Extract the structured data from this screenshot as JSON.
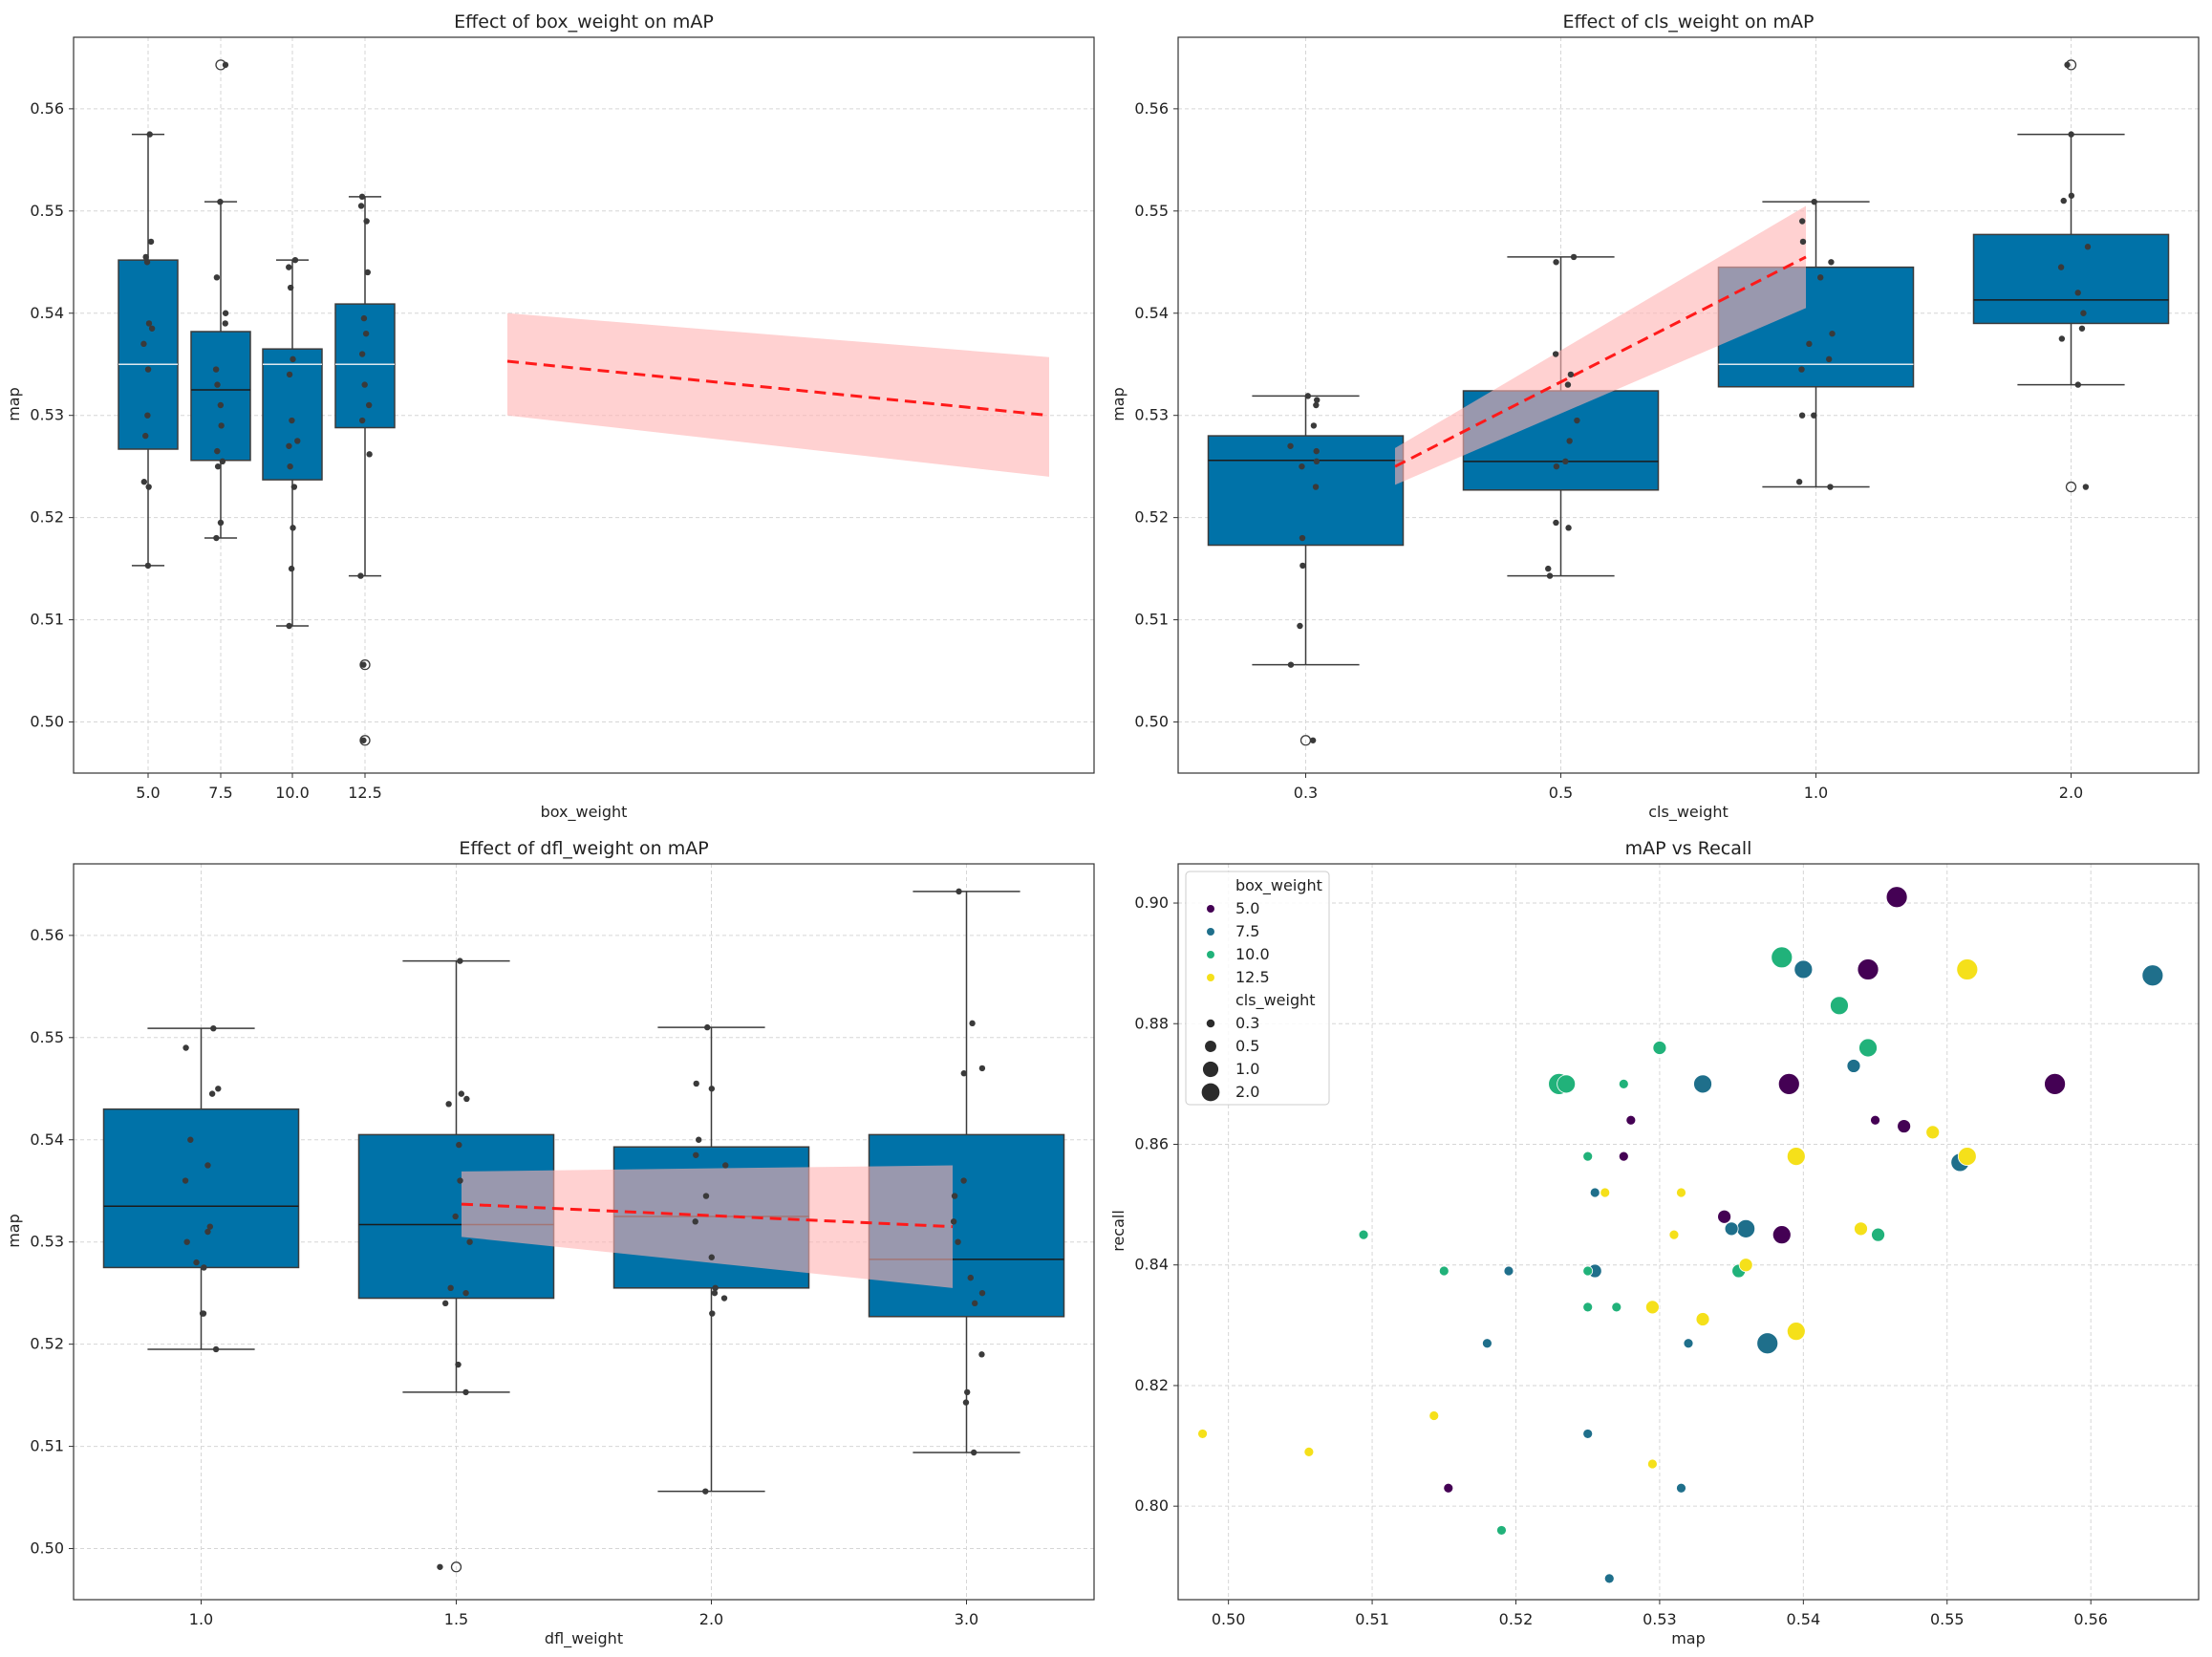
{
  "colors": {
    "box_fill": "#0072a8",
    "box_edge": "#3b3b3b",
    "median_dark": "#1b1b1b",
    "median_light": "#dfe8ee",
    "strip_point": "#3a3a3a",
    "reg_line": "#ff1a1a",
    "reg_band": "#ffb3b3",
    "grid": "#d6d6d6",
    "hue_5_0": "#440154",
    "hue_7_5": "#1f6f8b",
    "hue_10_0": "#21b27a",
    "hue_12_5": "#f5e01a"
  },
  "chart_data": [
    {
      "id": "box",
      "type": "box",
      "title": "Effect of box_weight on mAP",
      "xlabel": "box_weight",
      "ylabel": "map",
      "ylim": [
        0.495,
        0.567
      ],
      "yticks": [
        "0.50",
        "0.51",
        "0.52",
        "0.53",
        "0.54",
        "0.55",
        "0.56"
      ],
      "categories": [
        "5.0",
        "7.5",
        "10.0",
        "12.5"
      ],
      "boxes": [
        {
          "q1": 0.5267,
          "median": 0.535,
          "q3": 0.5452,
          "whislo": 0.5153,
          "whishi": 0.5575,
          "median_style": "light",
          "fliers": []
        },
        {
          "q1": 0.5256,
          "median": 0.5325,
          "q3": 0.5382,
          "whislo": 0.518,
          "whishi": 0.5509,
          "median_style": "dark",
          "fliers": [
            0.5643
          ]
        },
        {
          "q1": 0.5237,
          "median": 0.535,
          "q3": 0.5365,
          "whislo": 0.5094,
          "whishi": 0.5452,
          "median_style": "light",
          "fliers": []
        },
        {
          "q1": 0.5288,
          "median": 0.535,
          "q3": 0.5409,
          "whislo": 0.5143,
          "whishi": 0.5514,
          "median_style": "light",
          "fliers": [
            0.5056,
            0.4982
          ]
        }
      ],
      "strip": [
        [
          0.5153,
          0.523,
          0.5235,
          0.528,
          0.53,
          0.5345,
          0.537,
          0.5385,
          0.539,
          0.545,
          0.5455,
          0.547,
          0.5575
        ],
        [
          0.518,
          0.5195,
          0.525,
          0.5255,
          0.5265,
          0.529,
          0.531,
          0.533,
          0.5345,
          0.539,
          0.54,
          0.5435,
          0.5509,
          0.5643
        ],
        [
          0.5094,
          0.515,
          0.519,
          0.523,
          0.525,
          0.527,
          0.5275,
          0.5295,
          0.534,
          0.5355,
          0.5425,
          0.5445,
          0.5452
        ],
        [
          0.4982,
          0.5056,
          0.5143,
          0.5262,
          0.5295,
          0.531,
          0.533,
          0.536,
          0.538,
          0.5395,
          0.544,
          0.549,
          0.5505,
          0.5514
        ]
      ],
      "regression": {
        "x_start": 5.0,
        "x_end": 12.5,
        "y_start": 0.5353,
        "y_end": 0.53,
        "band_start": [
          0.53,
          0.54
        ],
        "band_end": [
          0.524,
          0.5357
        ],
        "x_lim": [
          -0.5,
          13.7
        ]
      }
    },
    {
      "id": "cls",
      "type": "box",
      "title": "Effect of cls_weight on mAP",
      "xlabel": "cls_weight",
      "ylabel": "map",
      "ylim": [
        0.495,
        0.567
      ],
      "yticks": [
        "0.50",
        "0.51",
        "0.52",
        "0.53",
        "0.54",
        "0.55",
        "0.56"
      ],
      "categories": [
        "0.3",
        "0.5",
        "1.0",
        "2.0"
      ],
      "boxes": [
        {
          "q1": 0.5173,
          "median": 0.5256,
          "q3": 0.528,
          "whislo": 0.5056,
          "whishi": 0.5319,
          "median_style": "dark",
          "fliers": [
            0.4982
          ]
        },
        {
          "q1": 0.5227,
          "median": 0.5255,
          "q3": 0.5324,
          "whislo": 0.5143,
          "whishi": 0.5455,
          "median_style": "dark",
          "fliers": []
        },
        {
          "q1": 0.5328,
          "median": 0.535,
          "q3": 0.5445,
          "whislo": 0.523,
          "whishi": 0.5509,
          "median_style": "light",
          "fliers": []
        },
        {
          "q1": 0.539,
          "median": 0.5413,
          "q3": 0.5477,
          "whislo": 0.533,
          "whishi": 0.5575,
          "median_style": "dark",
          "fliers": [
            0.5643,
            0.523
          ]
        }
      ],
      "strip": [
        [
          0.4982,
          0.5056,
          0.5094,
          0.5153,
          0.518,
          0.523,
          0.525,
          0.5255,
          0.5265,
          0.527,
          0.529,
          0.531,
          0.5315,
          0.5319
        ],
        [
          0.5143,
          0.515,
          0.519,
          0.5195,
          0.525,
          0.5255,
          0.5275,
          0.5295,
          0.533,
          0.534,
          0.536,
          0.545,
          0.5455
        ],
        [
          0.523,
          0.5235,
          0.53,
          0.53,
          0.5345,
          0.5355,
          0.537,
          0.538,
          0.5435,
          0.545,
          0.547,
          0.549,
          0.5509
        ],
        [
          0.523,
          0.533,
          0.5375,
          0.5385,
          0.54,
          0.542,
          0.5445,
          0.5465,
          0.551,
          0.5515,
          0.5575,
          0.5643
        ]
      ],
      "regression": {
        "x_start": 0.3,
        "x_end": 2.0,
        "y_start": 0.525,
        "y_end": 0.5455,
        "band_start": [
          0.5232,
          0.5268
        ],
        "band_end": [
          0.5405,
          0.5505
        ],
        "x_lim": [
          -0.5,
          3.5
        ]
      }
    },
    {
      "id": "dfl",
      "type": "box",
      "title": "Effect of dfl_weight on mAP",
      "xlabel": "dfl_weight",
      "ylabel": "map",
      "ylim": [
        0.495,
        0.567
      ],
      "yticks": [
        "0.50",
        "0.51",
        "0.52",
        "0.53",
        "0.54",
        "0.55",
        "0.56"
      ],
      "categories": [
        "1.0",
        "1.5",
        "2.0",
        "3.0"
      ],
      "boxes": [
        {
          "q1": 0.5275,
          "median": 0.5335,
          "q3": 0.543,
          "whislo": 0.5195,
          "whishi": 0.5509,
          "median_style": "dark",
          "fliers": []
        },
        {
          "q1": 0.5245,
          "median": 0.5317,
          "q3": 0.5405,
          "whislo": 0.5153,
          "whishi": 0.5575,
          "median_style": "dark",
          "fliers": [
            0.4982
          ]
        },
        {
          "q1": 0.5255,
          "median": 0.5325,
          "q3": 0.5393,
          "whislo": 0.5056,
          "whishi": 0.551,
          "median_style": "dark",
          "fliers": []
        },
        {
          "q1": 0.5227,
          "median": 0.5283,
          "q3": 0.5405,
          "whislo": 0.5094,
          "whishi": 0.5643,
          "median_style": "dark",
          "fliers": []
        }
      ],
      "strip": [
        [
          0.5195,
          0.523,
          0.523,
          0.5275,
          0.528,
          0.53,
          0.531,
          0.5315,
          0.536,
          0.5375,
          0.54,
          0.5445,
          0.545,
          0.549,
          0.5509
        ],
        [
          0.4982,
          0.5153,
          0.518,
          0.524,
          0.525,
          0.5255,
          0.53,
          0.5325,
          0.536,
          0.5395,
          0.5435,
          0.544,
          0.5445,
          0.5575
        ],
        [
          0.5056,
          0.523,
          0.5245,
          0.525,
          0.5255,
          0.5285,
          0.532,
          0.5345,
          0.5375,
          0.5385,
          0.54,
          0.545,
          0.5455,
          0.551
        ],
        [
          0.5094,
          0.5143,
          0.5153,
          0.519,
          0.524,
          0.525,
          0.5265,
          0.53,
          0.532,
          0.5345,
          0.536,
          0.5465,
          0.547,
          0.5514,
          0.5643
        ]
      ],
      "regression": {
        "x_start": 1.5,
        "x_end": 3.0,
        "y_start": 0.5337,
        "y_end": 0.5315,
        "band_start": [
          0.5305,
          0.5369
        ],
        "band_end": [
          0.5255,
          0.5375
        ],
        "x_lim": [
          -0.5,
          3.5
        ]
      }
    },
    {
      "id": "scatter",
      "type": "scatter",
      "title": "mAP vs Recall",
      "xlabel": "map",
      "ylabel": "recall",
      "xlim": [
        0.4965,
        0.5675
      ],
      "ylim": [
        0.7845,
        0.9065
      ],
      "xticks": [
        "0.50",
        "0.51",
        "0.52",
        "0.53",
        "0.54",
        "0.55",
        "0.56"
      ],
      "yticks": [
        "0.80",
        "0.82",
        "0.84",
        "0.86",
        "0.88",
        "0.90"
      ],
      "legend": {
        "title": "box_weight",
        "hue_entries": [
          {
            "label": "5.0",
            "color_key": "hue_5_0"
          },
          {
            "label": "7.5",
            "color_key": "hue_7_5"
          },
          {
            "label": "10.0",
            "color_key": "hue_10_0"
          },
          {
            "label": "12.5",
            "color_key": "hue_12_5"
          }
        ],
        "size_title": "cls_weight",
        "size_entries": [
          {
            "label": "0.3",
            "size": 0.3
          },
          {
            "label": "0.5",
            "size": 0.5
          },
          {
            "label": "1.0",
            "size": 1.0
          },
          {
            "label": "2.0",
            "size": 2.0
          }
        ],
        "location": "upper-left"
      },
      "points": [
        {
          "x": 0.5465,
          "y": 0.901,
          "hue": "5.0",
          "size": 2.0
        },
        {
          "x": 0.5445,
          "y": 0.889,
          "hue": "5.0",
          "size": 2.0
        },
        {
          "x": 0.539,
          "y": 0.87,
          "hue": "5.0",
          "size": 2.0
        },
        {
          "x": 0.5575,
          "y": 0.87,
          "hue": "5.0",
          "size": 2.0
        },
        {
          "x": 0.547,
          "y": 0.863,
          "hue": "5.0",
          "size": 0.5
        },
        {
          "x": 0.545,
          "y": 0.864,
          "hue": "5.0",
          "size": 0.3
        },
        {
          "x": 0.528,
          "y": 0.864,
          "hue": "5.0",
          "size": 0.3
        },
        {
          "x": 0.5275,
          "y": 0.858,
          "hue": "5.0",
          "size": 0.3
        },
        {
          "x": 0.5345,
          "y": 0.848,
          "hue": "5.0",
          "size": 0.5
        },
        {
          "x": 0.5385,
          "y": 0.845,
          "hue": "5.0",
          "size": 1.0
        },
        {
          "x": 0.5153,
          "y": 0.803,
          "hue": "5.0",
          "size": 0.3
        },
        {
          "x": 0.5643,
          "y": 0.888,
          "hue": "7.5",
          "size": 2.0
        },
        {
          "x": 0.54,
          "y": 0.889,
          "hue": "7.5",
          "size": 1.0
        },
        {
          "x": 0.5435,
          "y": 0.873,
          "hue": "7.5",
          "size": 0.5
        },
        {
          "x": 0.533,
          "y": 0.87,
          "hue": "7.5",
          "size": 1.0
        },
        {
          "x": 0.5509,
          "y": 0.857,
          "hue": "7.5",
          "size": 1.0
        },
        {
          "x": 0.5255,
          "y": 0.852,
          "hue": "7.5",
          "size": 0.3
        },
        {
          "x": 0.536,
          "y": 0.846,
          "hue": "7.5",
          "size": 1.0
        },
        {
          "x": 0.535,
          "y": 0.846,
          "hue": "7.5",
          "size": 0.5
        },
        {
          "x": 0.5195,
          "y": 0.839,
          "hue": "7.5",
          "size": 0.3
        },
        {
          "x": 0.5255,
          "y": 0.839,
          "hue": "7.5",
          "size": 0.5
        },
        {
          "x": 0.518,
          "y": 0.827,
          "hue": "7.5",
          "size": 0.3
        },
        {
          "x": 0.532,
          "y": 0.827,
          "hue": "7.5",
          "size": 0.3
        },
        {
          "x": 0.5375,
          "y": 0.827,
          "hue": "7.5",
          "size": 2.0
        },
        {
          "x": 0.525,
          "y": 0.812,
          "hue": "7.5",
          "size": 0.3
        },
        {
          "x": 0.5315,
          "y": 0.803,
          "hue": "7.5",
          "size": 0.3
        },
        {
          "x": 0.5265,
          "y": 0.788,
          "hue": "7.5",
          "size": 0.3
        },
        {
          "x": 0.5385,
          "y": 0.891,
          "hue": "10.0",
          "size": 2.0
        },
        {
          "x": 0.5425,
          "y": 0.883,
          "hue": "10.0",
          "size": 1.0
        },
        {
          "x": 0.5445,
          "y": 0.876,
          "hue": "10.0",
          "size": 1.0
        },
        {
          "x": 0.53,
          "y": 0.876,
          "hue": "10.0",
          "size": 0.5
        },
        {
          "x": 0.523,
          "y": 0.87,
          "hue": "10.0",
          "size": 2.0
        },
        {
          "x": 0.5235,
          "y": 0.87,
          "hue": "10.0",
          "size": 1.0
        },
        {
          "x": 0.5275,
          "y": 0.87,
          "hue": "10.0",
          "size": 0.3
        },
        {
          "x": 0.525,
          "y": 0.858,
          "hue": "10.0",
          "size": 0.3
        },
        {
          "x": 0.5094,
          "y": 0.845,
          "hue": "10.0",
          "size": 0.3
        },
        {
          "x": 0.515,
          "y": 0.839,
          "hue": "10.0",
          "size": 0.3
        },
        {
          "x": 0.525,
          "y": 0.839,
          "hue": "10.0",
          "size": 0.3
        },
        {
          "x": 0.5355,
          "y": 0.839,
          "hue": "10.0",
          "size": 0.5
        },
        {
          "x": 0.5452,
          "y": 0.845,
          "hue": "10.0",
          "size": 0.5
        },
        {
          "x": 0.525,
          "y": 0.833,
          "hue": "10.0",
          "size": 0.3
        },
        {
          "x": 0.527,
          "y": 0.833,
          "hue": "10.0",
          "size": 0.3
        },
        {
          "x": 0.519,
          "y": 0.796,
          "hue": "10.0",
          "size": 0.3
        },
        {
          "x": 0.5514,
          "y": 0.889,
          "hue": "12.5",
          "size": 2.0
        },
        {
          "x": 0.549,
          "y": 0.862,
          "hue": "12.5",
          "size": 0.5
        },
        {
          "x": 0.5395,
          "y": 0.858,
          "hue": "12.5",
          "size": 1.0
        },
        {
          "x": 0.5514,
          "y": 0.858,
          "hue": "12.5",
          "size": 1.0
        },
        {
          "x": 0.5262,
          "y": 0.852,
          "hue": "12.5",
          "size": 0.3
        },
        {
          "x": 0.5315,
          "y": 0.852,
          "hue": "12.5",
          "size": 0.3
        },
        {
          "x": 0.531,
          "y": 0.845,
          "hue": "12.5",
          "size": 0.3
        },
        {
          "x": 0.544,
          "y": 0.846,
          "hue": "12.5",
          "size": 0.5
        },
        {
          "x": 0.536,
          "y": 0.84,
          "hue": "12.5",
          "size": 0.5
        },
        {
          "x": 0.5295,
          "y": 0.833,
          "hue": "12.5",
          "size": 0.5
        },
        {
          "x": 0.533,
          "y": 0.831,
          "hue": "12.5",
          "size": 0.5
        },
        {
          "x": 0.5395,
          "y": 0.829,
          "hue": "12.5",
          "size": 1.0
        },
        {
          "x": 0.4982,
          "y": 0.812,
          "hue": "12.5",
          "size": 0.3
        },
        {
          "x": 0.5056,
          "y": 0.809,
          "hue": "12.5",
          "size": 0.3
        },
        {
          "x": 0.5143,
          "y": 0.815,
          "hue": "12.5",
          "size": 0.3
        },
        {
          "x": 0.5295,
          "y": 0.807,
          "hue": "12.5",
          "size": 0.3
        }
      ]
    }
  ]
}
